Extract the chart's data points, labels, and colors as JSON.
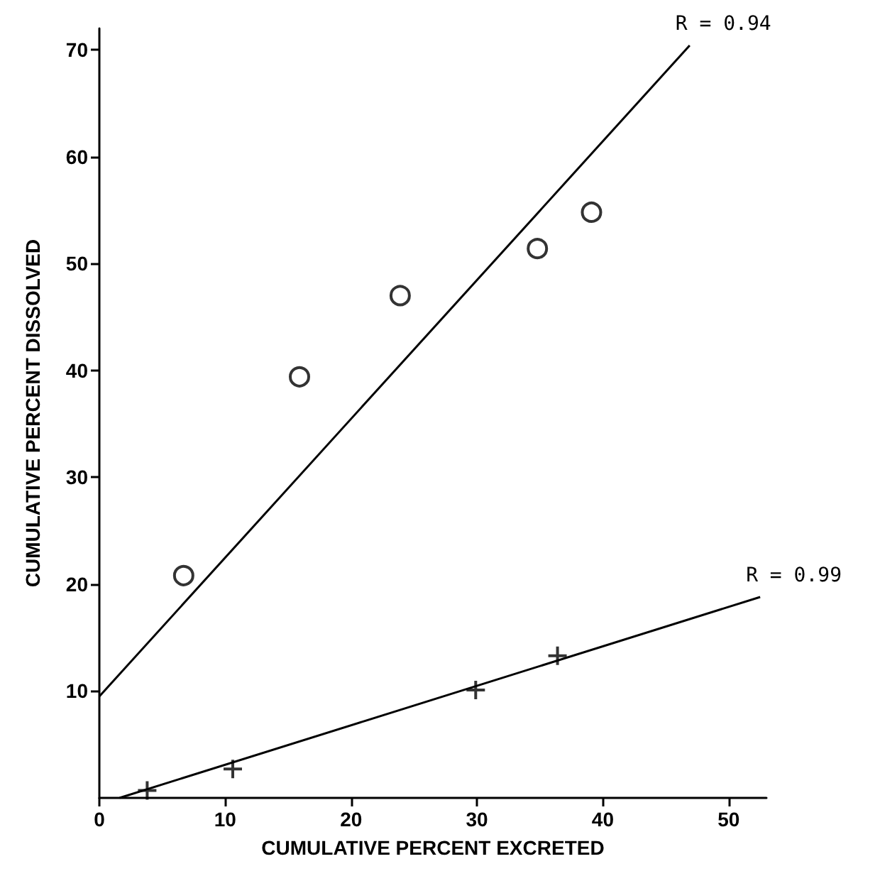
{
  "chart_data": {
    "type": "scatter",
    "xlabel": "CUMULATIVE PERCENT EXCRETED",
    "ylabel": "CUMULATIVE PERCENT DISSOLVED",
    "xlim": [
      0,
      53
    ],
    "xticks": [
      0,
      10,
      20,
      30,
      40,
      50
    ],
    "ylim": [
      0,
      72
    ],
    "yticks": [
      10,
      20,
      30,
      40,
      50,
      60,
      70
    ],
    "grid": false,
    "series": [
      {
        "type": "scatter",
        "marker": "circle",
        "color": "#000000",
        "x": [
          6.7,
          15.9,
          23.9,
          34.8,
          39.1
        ],
        "values": [
          20.8,
          39.4,
          47.0,
          51.4,
          54.8
        ]
      },
      {
        "type": "scatter",
        "marker": "cross",
        "color": "#000000",
        "x": [
          3.8,
          10.6,
          29.9,
          36.4
        ],
        "values": [
          0.7,
          2.7,
          10.1,
          13.3
        ]
      },
      {
        "type": "line",
        "marker": "none",
        "line_style": "solid",
        "color": "#000000",
        "x": [
          0,
          46.9
        ],
        "values": [
          9.5,
          70.4
        ]
      },
      {
        "type": "line",
        "marker": "none",
        "line_style": "solid",
        "color": "#000000",
        "x": [
          1.6,
          52.5
        ],
        "values": [
          0,
          18.8
        ]
      }
    ],
    "annotations": [
      {
        "text": "R = 0.94",
        "x": 46.9,
        "y": 70.4
      },
      {
        "text": "R = 0.99",
        "x": 52.5,
        "y": 18.8
      }
    ]
  }
}
